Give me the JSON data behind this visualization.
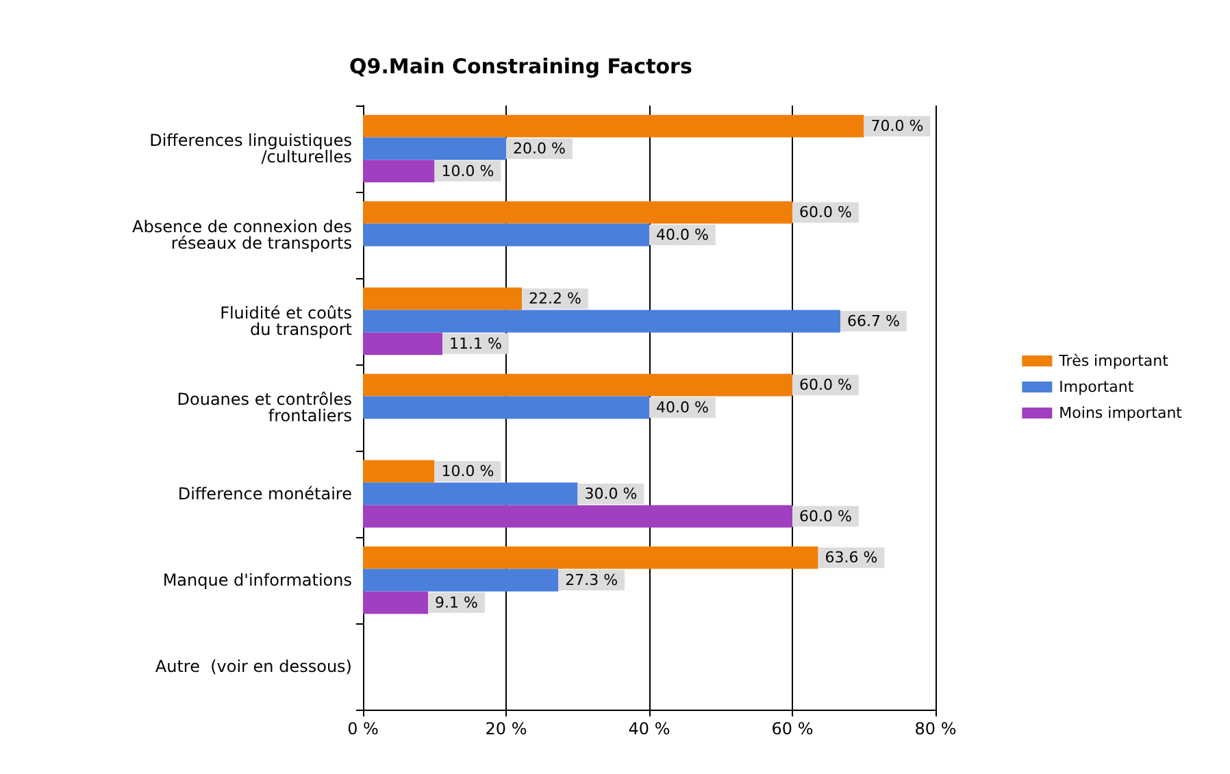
{
  "chart_data": {
    "type": "bar",
    "orientation": "horizontal",
    "title": "Q9.Main Constraining Factors",
    "categories": [
      "Differences linguistiques\n/culturelles",
      "Absence de connexion des\nréseaux de transports",
      "Fluidité et coûts\ndu transport",
      "Douanes et contrôles\nfrontaliers",
      "Difference monétaire",
      "Manque d'informations",
      "Autre  (voir en dessous)"
    ],
    "series": [
      {
        "name": "Très important",
        "color": "#f07f09",
        "values": [
          70,
          60,
          22.2,
          60,
          10,
          63.6,
          null
        ],
        "value_labels": [
          "70.0 %",
          "60.0 %",
          "22.2 %",
          "60.0 %",
          "10.0 %",
          "63.6 %",
          null
        ]
      },
      {
        "name": "Important",
        "color": "#4a7fdc",
        "values": [
          20,
          40,
          66.7,
          40,
          30,
          27.3,
          null
        ],
        "value_labels": [
          "20.0 %",
          "40.0 %",
          "66.7 %",
          "40.0 %",
          "30.0 %",
          "27.3 %",
          null
        ]
      },
      {
        "name": "Moins important",
        "color": "#a040c0",
        "values": [
          10,
          null,
          11.1,
          null,
          60,
          9.1,
          null
        ],
        "value_labels": [
          "10.0 %",
          null,
          "11.1 %",
          null,
          "60.0 %",
          "9.1 %",
          null
        ]
      }
    ],
    "xlim": [
      0,
      80
    ],
    "xticks": [
      {
        "value": 0,
        "label": "0 %"
      },
      {
        "value": 20,
        "label": "20 %"
      },
      {
        "value": 40,
        "label": "40 %"
      },
      {
        "value": 60,
        "label": "60 %"
      },
      {
        "value": 80,
        "label": "80 %"
      }
    ],
    "grid": "x",
    "legend": "right"
  }
}
